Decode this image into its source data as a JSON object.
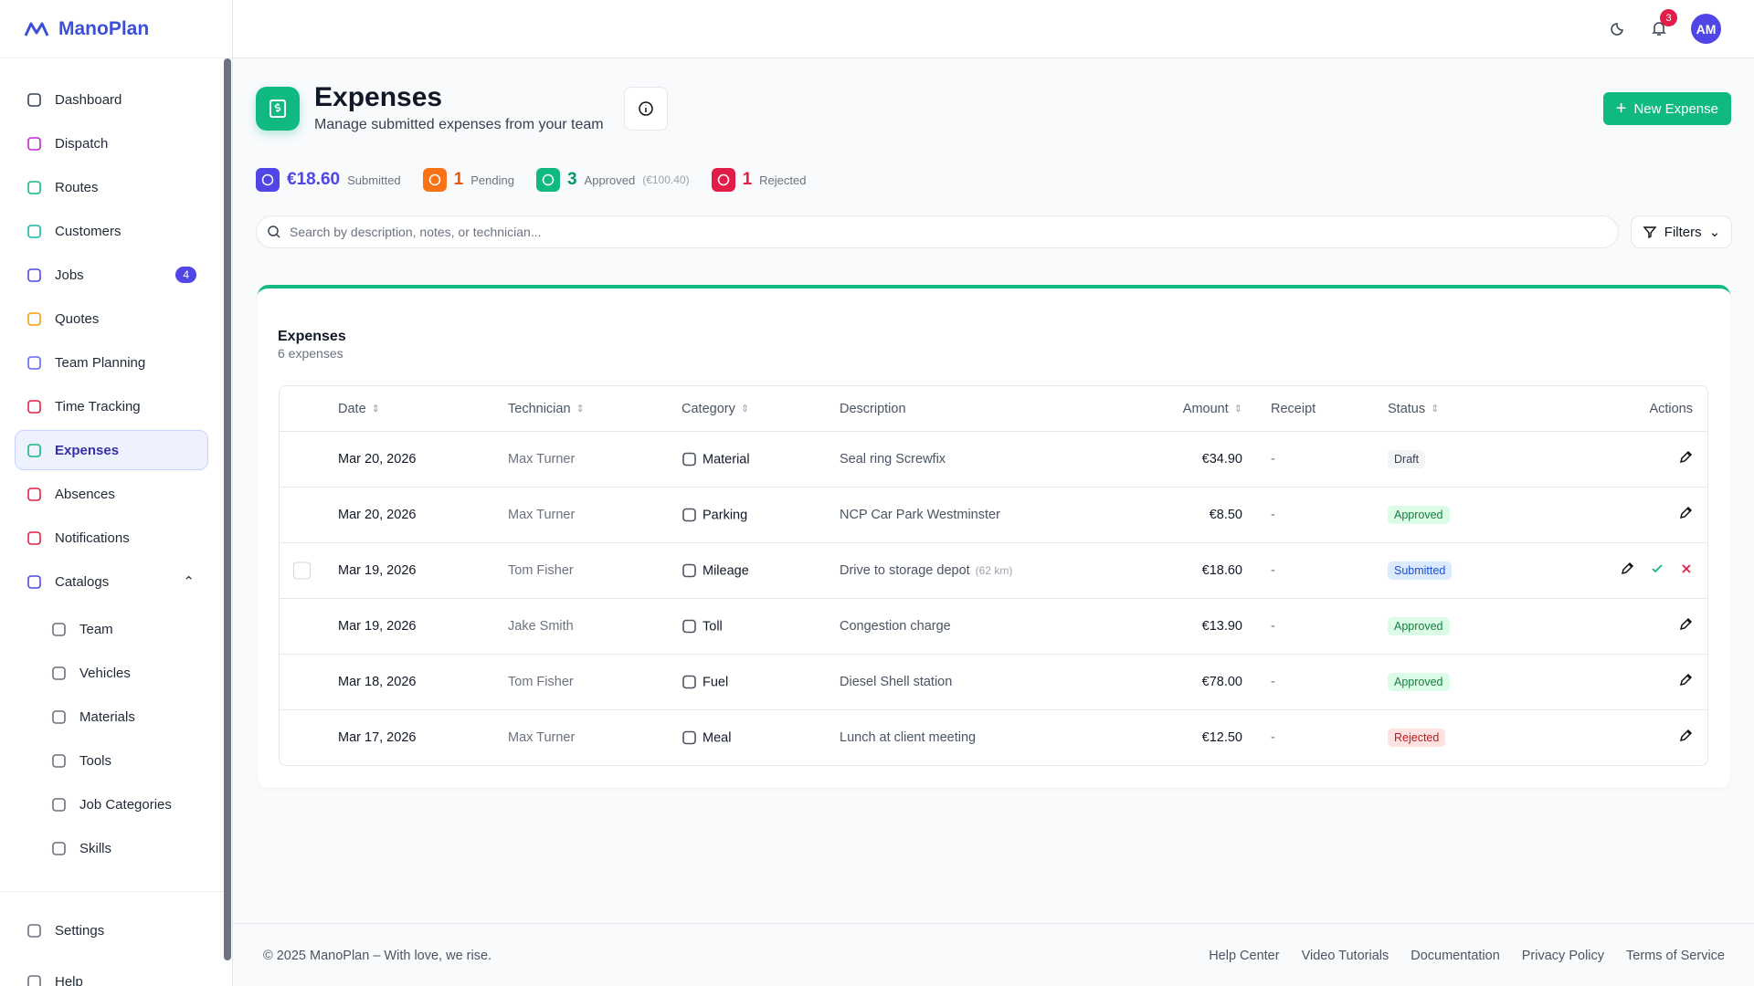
{
  "brand": "ManoPlan",
  "header": {
    "notifications": "3",
    "avatar": "AM"
  },
  "nav": [
    {
      "label": "Dashboard"
    },
    {
      "label": "Dispatch"
    },
    {
      "label": "Routes"
    },
    {
      "label": "Customers"
    },
    {
      "label": "Jobs",
      "badge": "4"
    },
    {
      "label": "Quotes"
    },
    {
      "label": "Team Planning"
    },
    {
      "label": "Time Tracking"
    },
    {
      "label": "Expenses"
    },
    {
      "label": "Absences"
    },
    {
      "label": "Notifications"
    },
    {
      "label": "Catalogs"
    }
  ],
  "catalogs": [
    "Team",
    "Vehicles",
    "Materials",
    "Tools",
    "Job Categories",
    "Skills"
  ],
  "bottom_nav": [
    "Settings",
    "Help"
  ],
  "page": {
    "title": "Expenses",
    "subtitle": "Manage submitted expenses from your team",
    "new_button": "New Expense"
  },
  "stats": [
    {
      "value": "€18.60",
      "label": "Submitted"
    },
    {
      "value": "1",
      "label": "Pending"
    },
    {
      "value": "3",
      "label": "Approved",
      "note": "(€100.40)"
    },
    {
      "value": "1",
      "label": "Rejected"
    }
  ],
  "search": {
    "placeholder": "Search by description, notes, or technician...",
    "filters": "Filters"
  },
  "card": {
    "title": "Expenses",
    "subtitle": "6 expenses"
  },
  "table": {
    "columns": [
      "Date",
      "Technician",
      "Category",
      "Description",
      "Amount",
      "Receipt",
      "Status",
      "Actions"
    ],
    "rows": [
      {
        "date": "Mar 20, 2026",
        "technician": "Max Turner",
        "category": "Material",
        "description": "Seal ring Screwfix",
        "amount": "€34.90",
        "receipt": "-",
        "status": "Draft"
      },
      {
        "date": "Mar 20, 2026",
        "technician": "Max Turner",
        "category": "Parking",
        "description": "NCP Car Park Westminster",
        "amount": "€8.50",
        "receipt": "-",
        "status": "Approved"
      },
      {
        "date": "Mar 19, 2026",
        "technician": "Tom Fisher",
        "category": "Mileage",
        "description": "Drive to storage depot",
        "note": "(62 km)",
        "amount": "€18.60",
        "receipt": "-",
        "status": "Submitted"
      },
      {
        "date": "Mar 19, 2026",
        "technician": "Jake Smith",
        "category": "Toll",
        "description": "Congestion charge",
        "amount": "€13.90",
        "receipt": "-",
        "status": "Approved"
      },
      {
        "date": "Mar 18, 2026",
        "technician": "Tom Fisher",
        "category": "Fuel",
        "description": "Diesel Shell station",
        "amount": "€78.00",
        "receipt": "-",
        "status": "Approved"
      },
      {
        "date": "Mar 17, 2026",
        "technician": "Max Turner",
        "category": "Meal",
        "description": "Lunch at client meeting",
        "amount": "€12.50",
        "receipt": "-",
        "status": "Rejected"
      }
    ]
  },
  "footer": {
    "copyright": "© 2025 ManoPlan – With love, we rise.",
    "links": [
      "Help Center",
      "Video Tutorials",
      "Documentation",
      "Privacy Policy",
      "Terms of Service"
    ]
  }
}
